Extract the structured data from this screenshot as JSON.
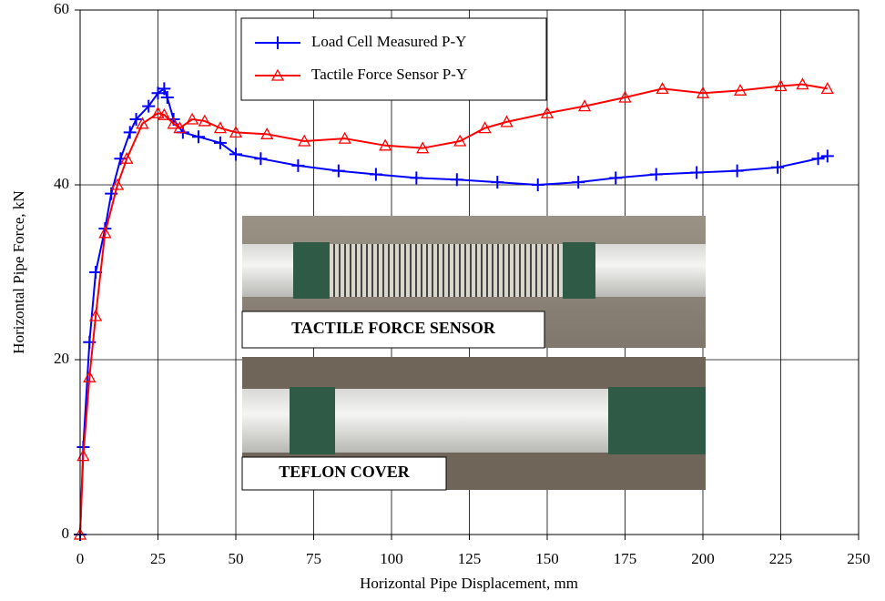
{
  "chart_data": {
    "type": "line",
    "xlabel": "Horizontal Pipe Displacement, mm",
    "ylabel": "Horizontal Pipe Force, kN",
    "xlim": [
      0,
      250
    ],
    "ylim": [
      0,
      60
    ],
    "xticks": [
      0,
      25,
      50,
      75,
      100,
      125,
      150,
      175,
      200,
      225,
      250
    ],
    "yticks": [
      0,
      20,
      40,
      60
    ],
    "grid": true,
    "legend": "top-center",
    "series": [
      {
        "name": "Load Cell Measured P-Y",
        "color": "#0000ff",
        "marker": "plus",
        "x": [
          0,
          1,
          3,
          5,
          8,
          10,
          13,
          16,
          18,
          22,
          25,
          27,
          28,
          30,
          33,
          38,
          45,
          50,
          58,
          70,
          83,
          95,
          108,
          121,
          134,
          147,
          160,
          172,
          185,
          198,
          211,
          224,
          237,
          240
        ],
        "values": [
          0,
          10,
          22,
          30,
          35,
          39,
          43,
          46,
          47.5,
          49,
          50.5,
          51,
          50,
          47.5,
          46,
          45.5,
          44.8,
          43.5,
          43,
          42.2,
          41.6,
          41.2,
          40.8,
          40.6,
          40.3,
          40,
          40.3,
          40.8,
          41.2,
          41.4,
          41.6,
          42,
          43,
          43.3
        ]
      },
      {
        "name": "Tactile Force Sensor P-Y",
        "color": "#ff0000",
        "marker": "triangle",
        "x": [
          0,
          1,
          3,
          5,
          8,
          12,
          15,
          20,
          25,
          27,
          30,
          32,
          36,
          40,
          45,
          50,
          60,
          72,
          85,
          98,
          110,
          122,
          130,
          137,
          150,
          162,
          175,
          187,
          200,
          212,
          225,
          232,
          240
        ],
        "values": [
          0,
          9,
          18,
          25,
          34.5,
          40,
          43,
          47,
          48.2,
          48,
          47,
          46.5,
          47.5,
          47.3,
          46.5,
          46,
          45.8,
          45,
          45.3,
          44.5,
          44.2,
          45,
          46.5,
          47.2,
          48.2,
          49,
          50,
          51,
          50.5,
          50.8,
          51.3,
          51.5,
          51
        ]
      }
    ]
  },
  "insets": [
    {
      "label": "TACTILE FORCE SENSOR"
    },
    {
      "label": "TEFLON COVER"
    }
  ]
}
